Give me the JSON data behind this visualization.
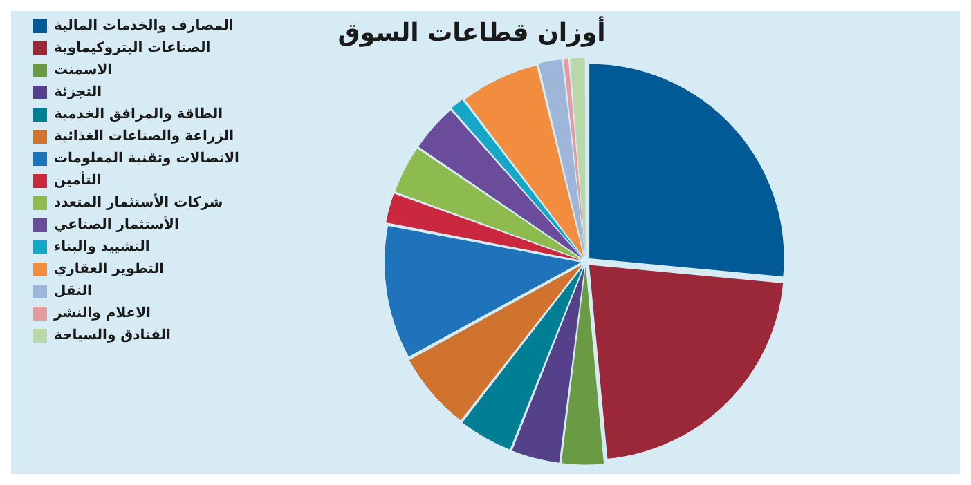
{
  "chart_data": {
    "type": "pie",
    "title": "أوزان قطاعات السوق",
    "categories": [
      "المصارف والخدمات المالية",
      "الصناعات البتروكيماوية",
      "الاسمنت",
      "التجزئة",
      "الطاقة والمرافق الخدمية",
      "الزراعة والصناعات الغذائية",
      "الاتصالات وتقنية المعلومات",
      "التأمين",
      "شركات الأستثمار المتعدد",
      "الأستثمار الصناعي",
      "التشييد والبناء",
      "التطوير العقاري",
      "النقل",
      "الاعلام والنشر",
      "الفنادق والسياحة"
    ],
    "values": [
      26.5,
      22,
      3.5,
      4,
      4.5,
      6.5,
      11,
      2.5,
      4,
      4,
      1.2,
      6.5,
      2,
      0.5,
      1.3
    ],
    "colors": [
      "#005a96",
      "#9a2838",
      "#6a9a44",
      "#54418a",
      "#007f94",
      "#d0732e",
      "#1f73ba",
      "#c9283f",
      "#8dbb4e",
      "#6b4c9a",
      "#16a6c6",
      "#f28c3e",
      "#9eb6da",
      "#e39ba0",
      "#b9d8a8"
    ],
    "legend": "left"
  }
}
